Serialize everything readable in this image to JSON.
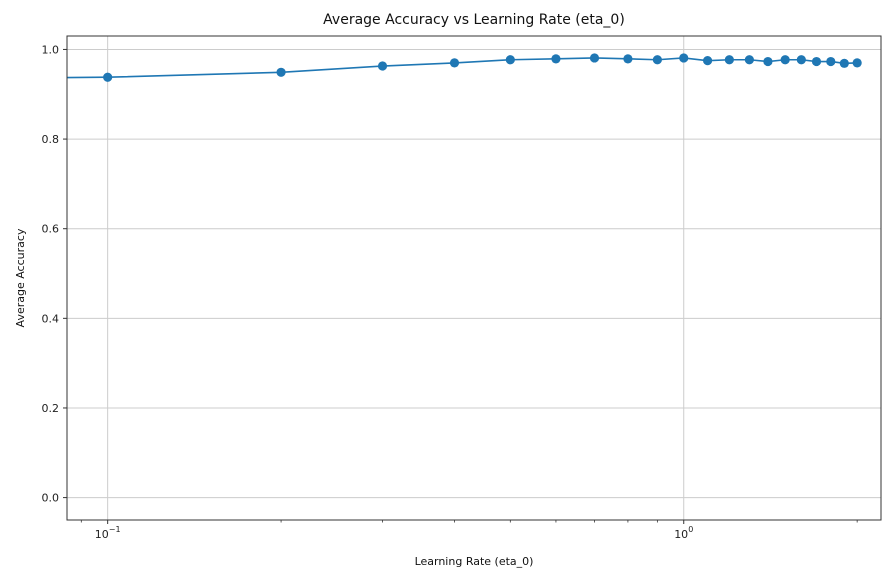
{
  "chart_data": {
    "type": "line",
    "title": "Average Accuracy vs Learning Rate (eta_0)",
    "xlabel": "Learning Rate (eta_0)",
    "ylabel": "Average Accuracy",
    "xscale": "log",
    "xlim": [
      0.085,
      2.2
    ],
    "ylim": [
      -0.05,
      1.03
    ],
    "grid": true,
    "x_ticks": [
      {
        "value": 0.1,
        "base": "10",
        "exp": "−1"
      },
      {
        "value": 1,
        "base": "10",
        "exp": "0"
      }
    ],
    "y_ticks": [
      {
        "value": 0.0,
        "label": "0.0"
      },
      {
        "value": 0.2,
        "label": "0.2"
      },
      {
        "value": 0.4,
        "label": "0.4"
      },
      {
        "value": 0.6,
        "label": "0.6"
      },
      {
        "value": 0.8,
        "label": "0.8"
      },
      {
        "value": 1.0,
        "label": "1.0"
      }
    ],
    "line_color": "#1f77b4",
    "series": [
      {
        "x": [
          0.08,
          0.1,
          0.2,
          0.3,
          0.4,
          0.5,
          0.6,
          0.7,
          0.8,
          0.9,
          1.0,
          1.1,
          1.2,
          1.3,
          1.4,
          1.5,
          1.6,
          1.7,
          1.8,
          1.9,
          2.0
        ],
        "y": [
          0.937,
          0.938,
          0.949,
          0.963,
          0.97,
          0.977,
          0.979,
          0.981,
          0.979,
          0.977,
          0.981,
          0.975,
          0.977,
          0.977,
          0.973,
          0.977,
          0.977,
          0.973,
          0.973,
          0.969,
          0.97
        ]
      }
    ]
  }
}
